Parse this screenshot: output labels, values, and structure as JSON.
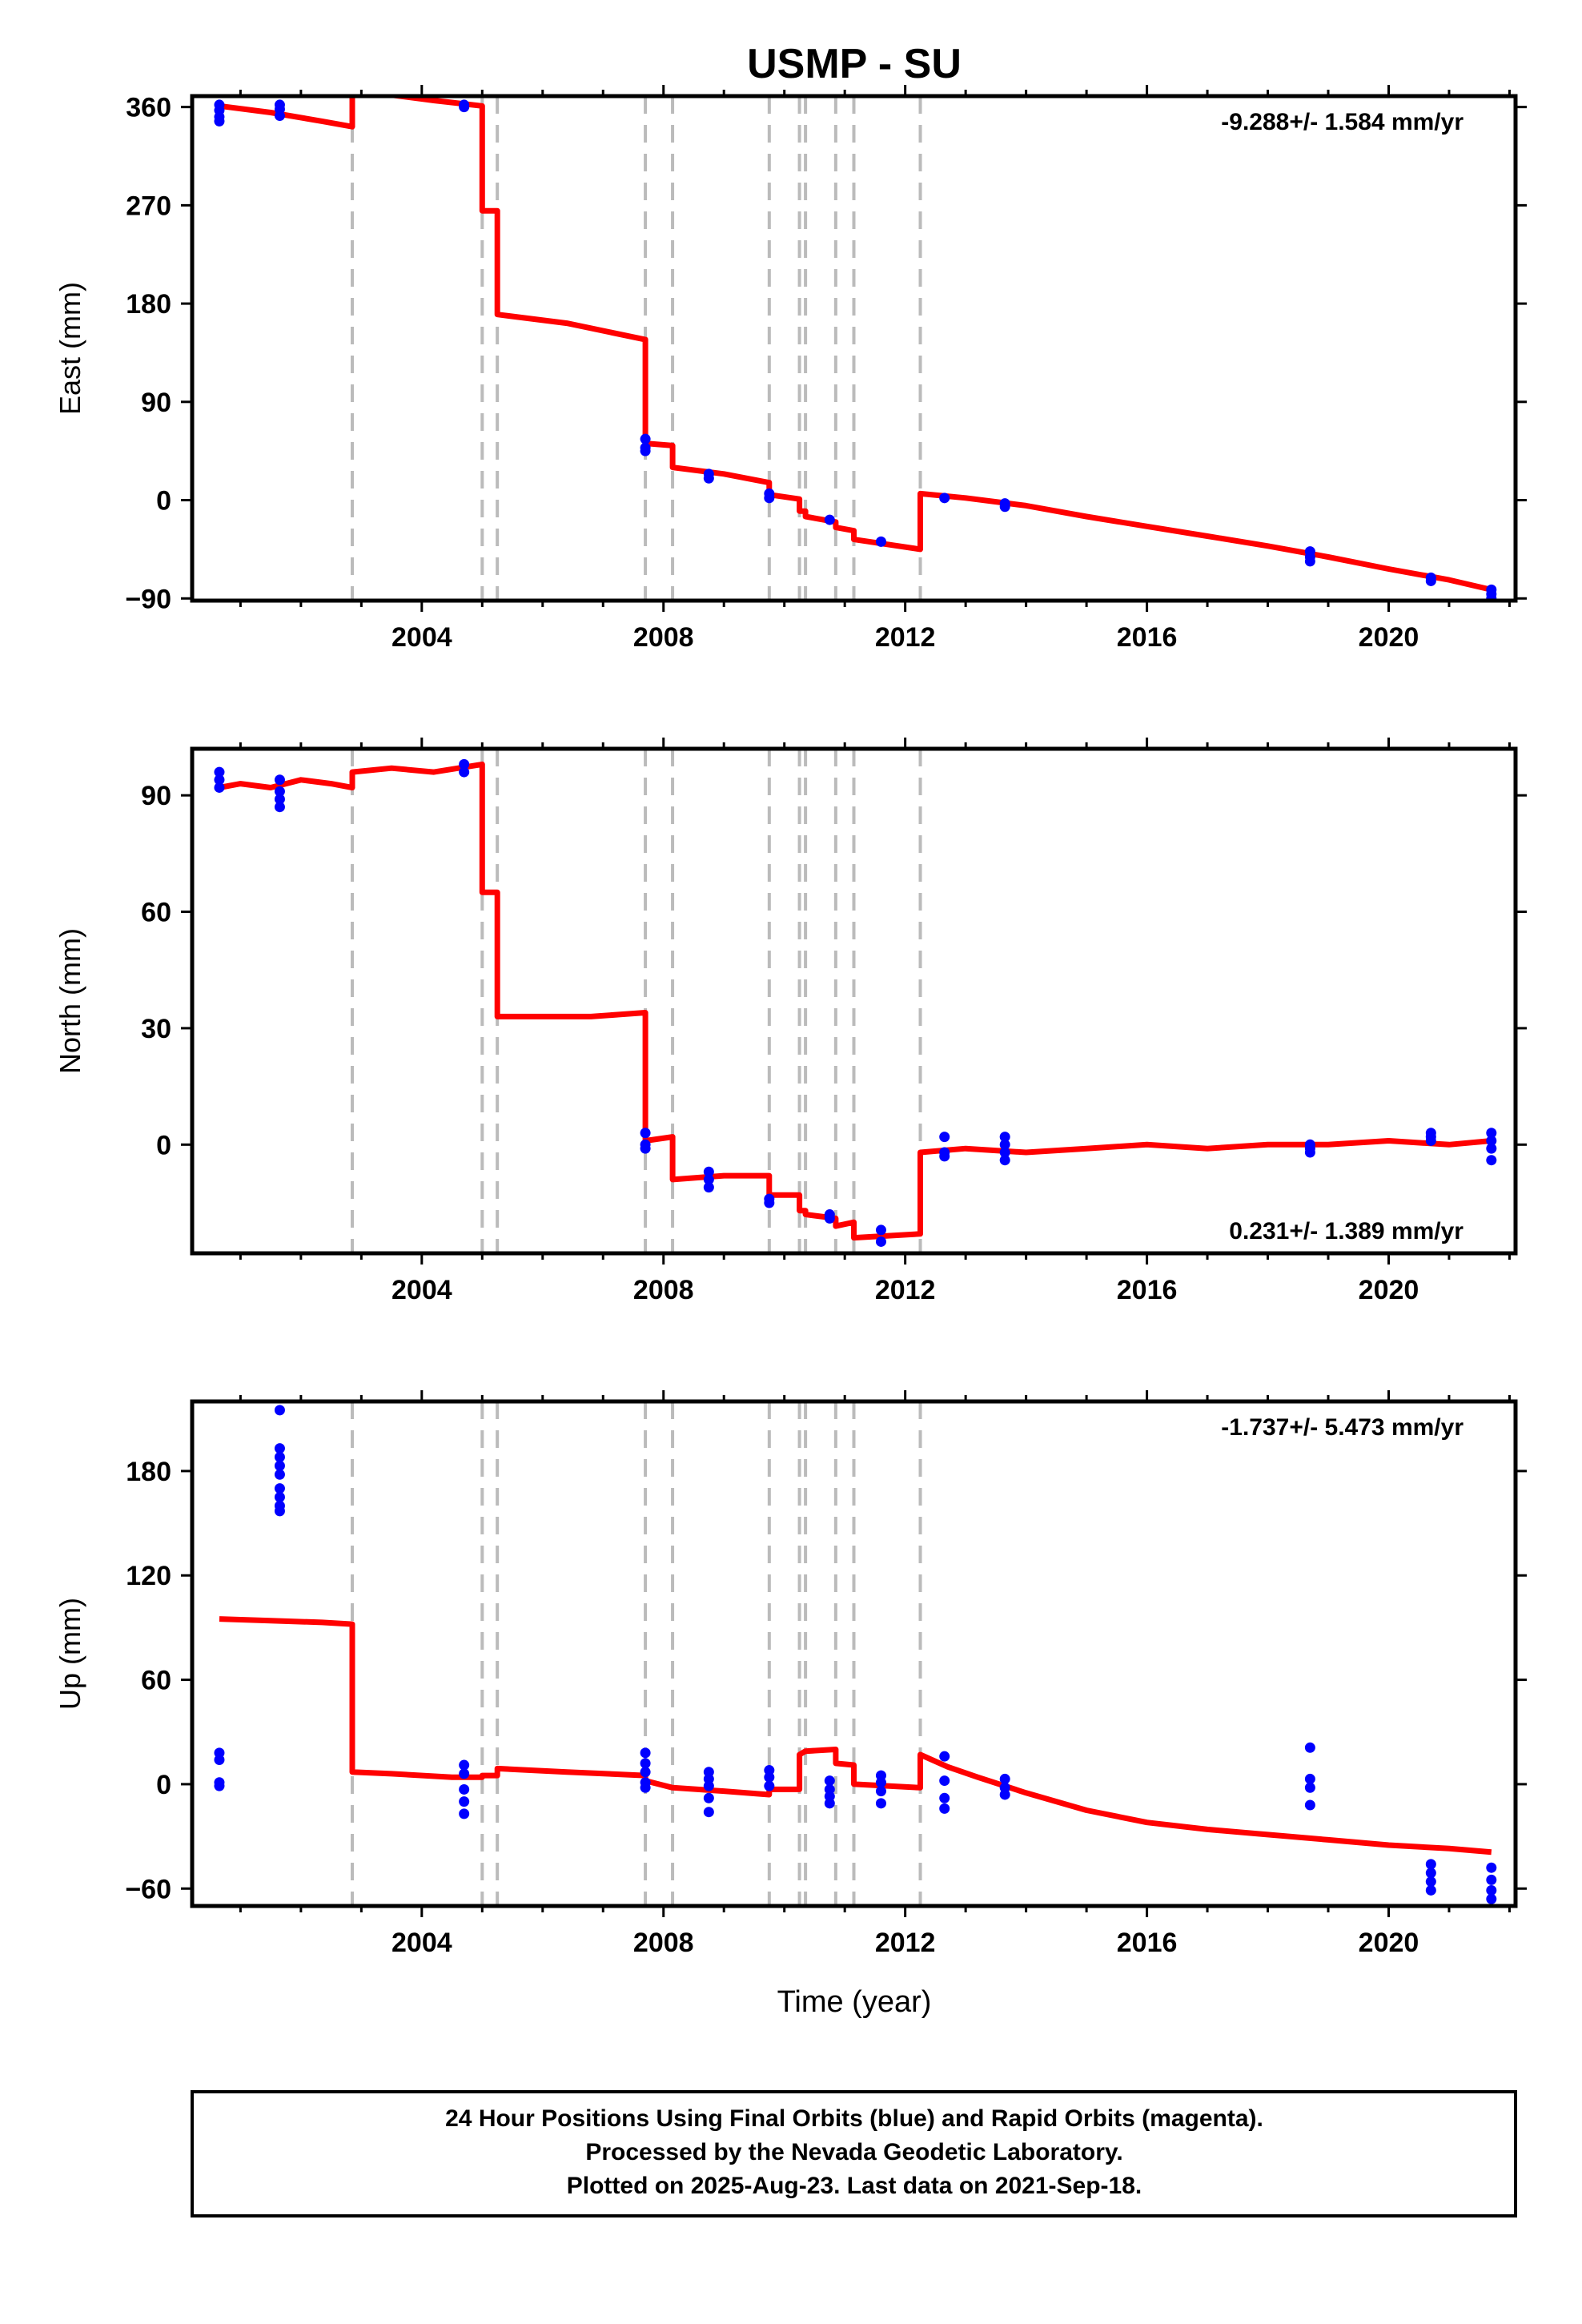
{
  "title": "USMP - SU",
  "x_axis_label": "Time (year)",
  "footer_lines": [
    "24 Hour Positions Using Final Orbits (blue) and Rapid Orbits (magenta).",
    "Processed by the Nevada Geodetic Laboratory.",
    "Plotted on 2025-Aug-23. Last data on 2021-Sep-18."
  ],
  "colors": {
    "model": "#ff0000",
    "final_orbits": "#0000ff",
    "steps": "#bbbbbb",
    "frame": "#000000"
  },
  "chart_data": [
    {
      "type": "scatter",
      "name": "east",
      "ylabel": "East (mm)",
      "rate_text": "-9.288+/- 1.584 mm/yr",
      "rate_position": "top-right",
      "xlim": [
        2000.2,
        2022.1
      ],
      "ylim": [
        -92,
        370
      ],
      "yticks": [
        -90,
        0,
        90,
        180,
        270,
        360
      ],
      "xticks": [
        2004,
        2008,
        2012,
        2016,
        2020
      ],
      "steps": [
        2002.85,
        2005.0,
        2005.25,
        2007.7,
        2008.15,
        2009.75,
        2010.25,
        2010.35,
        2010.85,
        2011.15,
        2012.25
      ],
      "points": [
        [
          2000.65,
          362
        ],
        [
          2000.65,
          357
        ],
        [
          2000.65,
          351
        ],
        [
          2000.65,
          347
        ],
        [
          2001.65,
          362
        ],
        [
          2001.65,
          358
        ],
        [
          2001.65,
          352
        ],
        [
          2004.7,
          362
        ],
        [
          2004.7,
          360
        ],
        [
          2007.7,
          56
        ],
        [
          2007.7,
          48
        ],
        [
          2007.7,
          45
        ],
        [
          2008.75,
          24
        ],
        [
          2008.75,
          20
        ],
        [
          2009.75,
          6
        ],
        [
          2009.75,
          2
        ],
        [
          2010.75,
          -18
        ],
        [
          2011.6,
          -38
        ],
        [
          2012.65,
          2
        ],
        [
          2013.65,
          -3
        ],
        [
          2013.65,
          -6
        ],
        [
          2018.7,
          -47
        ],
        [
          2018.7,
          -52
        ],
        [
          2018.7,
          -56
        ],
        [
          2020.7,
          -71
        ],
        [
          2020.7,
          -74
        ],
        [
          2021.7,
          -82
        ],
        [
          2021.7,
          -86
        ],
        [
          2021.7,
          -90
        ]
      ],
      "model": [
        [
          2000.65,
          361
        ],
        [
          2001.5,
          355
        ],
        [
          2002.35,
          347
        ],
        [
          2002.85,
          342
        ],
        [
          2002.85,
          373
        ],
        [
          2003.5,
          371
        ],
        [
          2004.2,
          366
        ],
        [
          2005.0,
          361
        ],
        [
          2005.0,
          265
        ],
        [
          2005.25,
          265
        ],
        [
          2005.25,
          170
        ],
        [
          2006.4,
          162
        ],
        [
          2007.7,
          147
        ],
        [
          2007.7,
          52
        ],
        [
          2008.15,
          50
        ],
        [
          2008.15,
          30
        ],
        [
          2009.0,
          24
        ],
        [
          2009.75,
          16
        ],
        [
          2009.75,
          5
        ],
        [
          2010.25,
          1
        ],
        [
          2010.25,
          -10
        ],
        [
          2010.35,
          -10
        ],
        [
          2010.35,
          -15
        ],
        [
          2010.85,
          -20
        ],
        [
          2010.85,
          -25
        ],
        [
          2011.15,
          -28
        ],
        [
          2011.15,
          -36
        ],
        [
          2012.25,
          -45
        ],
        [
          2012.25,
          6
        ],
        [
          2013.0,
          2
        ],
        [
          2014.0,
          -5
        ],
        [
          2015.0,
          -15
        ],
        [
          2016.0,
          -24
        ],
        [
          2017.0,
          -33
        ],
        [
          2018.0,
          -42
        ],
        [
          2019.0,
          -52
        ],
        [
          2020.0,
          -63
        ],
        [
          2021.0,
          -73
        ],
        [
          2021.7,
          -82
        ]
      ]
    },
    {
      "type": "scatter",
      "name": "north",
      "ylabel": "North (mm)",
      "rate_text": "0.231+/- 1.389 mm/yr",
      "rate_position": "bottom-right",
      "xlim": [
        2000.2,
        2022.1
      ],
      "ylim": [
        -28,
        102
      ],
      "yticks": [
        0,
        30,
        60,
        90
      ],
      "xticks": [
        2004,
        2008,
        2012,
        2016,
        2020
      ],
      "steps": [
        2002.85,
        2005.0,
        2005.25,
        2007.7,
        2008.15,
        2009.75,
        2010.25,
        2010.35,
        2010.85,
        2011.15,
        2012.25
      ],
      "points": [
        [
          2000.65,
          96
        ],
        [
          2000.65,
          94
        ],
        [
          2000.65,
          92
        ],
        [
          2001.65,
          94
        ],
        [
          2001.65,
          91
        ],
        [
          2001.65,
          89
        ],
        [
          2001.65,
          87
        ],
        [
          2004.7,
          98
        ],
        [
          2004.7,
          96
        ],
        [
          2007.7,
          3
        ],
        [
          2007.7,
          0
        ],
        [
          2007.7,
          -1
        ],
        [
          2008.75,
          -7
        ],
        [
          2008.75,
          -9
        ],
        [
          2008.75,
          -11
        ],
        [
          2009.75,
          -14
        ],
        [
          2009.75,
          -15
        ],
        [
          2010.75,
          -18
        ],
        [
          2010.75,
          -19
        ],
        [
          2011.6,
          -22
        ],
        [
          2011.6,
          -25
        ],
        [
          2012.65,
          2
        ],
        [
          2012.65,
          -2
        ],
        [
          2012.65,
          -3
        ],
        [
          2013.65,
          2
        ],
        [
          2013.65,
          0
        ],
        [
          2013.65,
          -2
        ],
        [
          2013.65,
          -4
        ],
        [
          2018.7,
          0
        ],
        [
          2018.7,
          -1
        ],
        [
          2018.7,
          -2
        ],
        [
          2020.7,
          3
        ],
        [
          2020.7,
          2
        ],
        [
          2020.7,
          1
        ],
        [
          2021.7,
          3
        ],
        [
          2021.7,
          1
        ],
        [
          2021.7,
          -1
        ],
        [
          2021.7,
          -4
        ]
      ],
      "model": [
        [
          2000.65,
          92
        ],
        [
          2001.0,
          93
        ],
        [
          2001.5,
          92
        ],
        [
          2002.0,
          94
        ],
        [
          2002.5,
          93
        ],
        [
          2002.85,
          92
        ],
        [
          2002.85,
          96
        ],
        [
          2003.5,
          97
        ],
        [
          2004.2,
          96
        ],
        [
          2005.0,
          98
        ],
        [
          2005.0,
          65
        ],
        [
          2005.25,
          65
        ],
        [
          2005.25,
          33
        ],
        [
          2006.0,
          33
        ],
        [
          2006.8,
          33
        ],
        [
          2007.7,
          34
        ],
        [
          2007.7,
          1
        ],
        [
          2008.15,
          2
        ],
        [
          2008.15,
          -9
        ],
        [
          2009.0,
          -8
        ],
        [
          2009.75,
          -8
        ],
        [
          2009.75,
          -13
        ],
        [
          2010.25,
          -13
        ],
        [
          2010.25,
          -17
        ],
        [
          2010.35,
          -17
        ],
        [
          2010.35,
          -18
        ],
        [
          2010.85,
          -19
        ],
        [
          2010.85,
          -21
        ],
        [
          2011.15,
          -20
        ],
        [
          2011.15,
          -24
        ],
        [
          2012.25,
          -23
        ],
        [
          2012.25,
          -2
        ],
        [
          2013.0,
          -1
        ],
        [
          2014.0,
          -2
        ],
        [
          2015.0,
          -1
        ],
        [
          2016.0,
          0
        ],
        [
          2017.0,
          -1
        ],
        [
          2018.0,
          0
        ],
        [
          2019.0,
          0
        ],
        [
          2020.0,
          1
        ],
        [
          2021.0,
          0
        ],
        [
          2021.7,
          1
        ]
      ]
    },
    {
      "type": "scatter",
      "name": "up",
      "ylabel": "Up (mm)",
      "rate_text": "-1.737+/- 5.473 mm/yr",
      "rate_position": "top-right",
      "xlim": [
        2000.2,
        2022.1
      ],
      "ylim": [
        -70,
        220
      ],
      "yticks": [
        -60,
        0,
        60,
        120,
        180
      ],
      "xticks": [
        2004,
        2008,
        2012,
        2016,
        2020
      ],
      "steps": [
        2002.85,
        2005.0,
        2005.25,
        2007.7,
        2008.15,
        2009.75,
        2010.25,
        2010.35,
        2010.85,
        2011.15,
        2012.25
      ],
      "points": [
        [
          2000.65,
          18
        ],
        [
          2000.65,
          14
        ],
        [
          2000.65,
          1
        ],
        [
          2000.65,
          -1
        ],
        [
          2001.65,
          215
        ],
        [
          2001.65,
          193
        ],
        [
          2001.65,
          188
        ],
        [
          2001.65,
          183
        ],
        [
          2001.65,
          178
        ],
        [
          2001.65,
          170
        ],
        [
          2001.65,
          165
        ],
        [
          2001.65,
          160
        ],
        [
          2001.65,
          157
        ],
        [
          2004.7,
          11
        ],
        [
          2004.7,
          6
        ],
        [
          2004.7,
          -3
        ],
        [
          2004.7,
          -10
        ],
        [
          2004.7,
          -17
        ],
        [
          2007.7,
          18
        ],
        [
          2007.7,
          12
        ],
        [
          2007.7,
          7
        ],
        [
          2007.7,
          1
        ],
        [
          2007.7,
          -2
        ],
        [
          2008.75,
          7
        ],
        [
          2008.75,
          3
        ],
        [
          2008.75,
          -1
        ],
        [
          2008.75,
          -8
        ],
        [
          2008.75,
          -16
        ],
        [
          2009.75,
          8
        ],
        [
          2009.75,
          4
        ],
        [
          2009.75,
          -1
        ],
        [
          2010.75,
          2
        ],
        [
          2010.75,
          -3
        ],
        [
          2010.75,
          -7
        ],
        [
          2010.75,
          -11
        ],
        [
          2011.6,
          5
        ],
        [
          2011.6,
          1
        ],
        [
          2011.6,
          -4
        ],
        [
          2011.6,
          -11
        ],
        [
          2012.65,
          16
        ],
        [
          2012.65,
          2
        ],
        [
          2012.65,
          -8
        ],
        [
          2012.65,
          -14
        ],
        [
          2013.65,
          3
        ],
        [
          2013.65,
          -2
        ],
        [
          2013.65,
          -6
        ],
        [
          2018.7,
          21
        ],
        [
          2018.7,
          3
        ],
        [
          2018.7,
          -2
        ],
        [
          2018.7,
          -12
        ],
        [
          2020.7,
          -46
        ],
        [
          2020.7,
          -51
        ],
        [
          2020.7,
          -56
        ],
        [
          2020.7,
          -61
        ],
        [
          2021.7,
          -48
        ],
        [
          2021.7,
          -55
        ],
        [
          2021.7,
          -61
        ],
        [
          2021.7,
          -66
        ]
      ],
      "model": [
        [
          2000.65,
          95
        ],
        [
          2001.5,
          94
        ],
        [
          2002.35,
          93
        ],
        [
          2002.85,
          92
        ],
        [
          2002.85,
          7
        ],
        [
          2003.5,
          6
        ],
        [
          2004.5,
          4
        ],
        [
          2005.0,
          4
        ],
        [
          2005.0,
          5
        ],
        [
          2005.25,
          5
        ],
        [
          2005.25,
          9
        ],
        [
          2006.4,
          7
        ],
        [
          2007.7,
          5
        ],
        [
          2007.7,
          2
        ],
        [
          2008.15,
          -2
        ],
        [
          2009.0,
          -4
        ],
        [
          2009.75,
          -6
        ],
        [
          2009.75,
          -3
        ],
        [
          2010.25,
          -3
        ],
        [
          2010.25,
          17
        ],
        [
          2010.35,
          19
        ],
        [
          2010.85,
          20
        ],
        [
          2010.85,
          12
        ],
        [
          2011.15,
          11
        ],
        [
          2011.15,
          0
        ],
        [
          2012.25,
          -2
        ],
        [
          2012.25,
          17
        ],
        [
          2012.7,
          10
        ],
        [
          2013.2,
          4
        ],
        [
          2014.0,
          -5
        ],
        [
          2015.0,
          -15
        ],
        [
          2016.0,
          -22
        ],
        [
          2017.0,
          -26
        ],
        [
          2018.0,
          -29
        ],
        [
          2019.0,
          -32
        ],
        [
          2020.0,
          -35
        ],
        [
          2021.0,
          -37
        ],
        [
          2021.7,
          -39
        ]
      ]
    }
  ]
}
